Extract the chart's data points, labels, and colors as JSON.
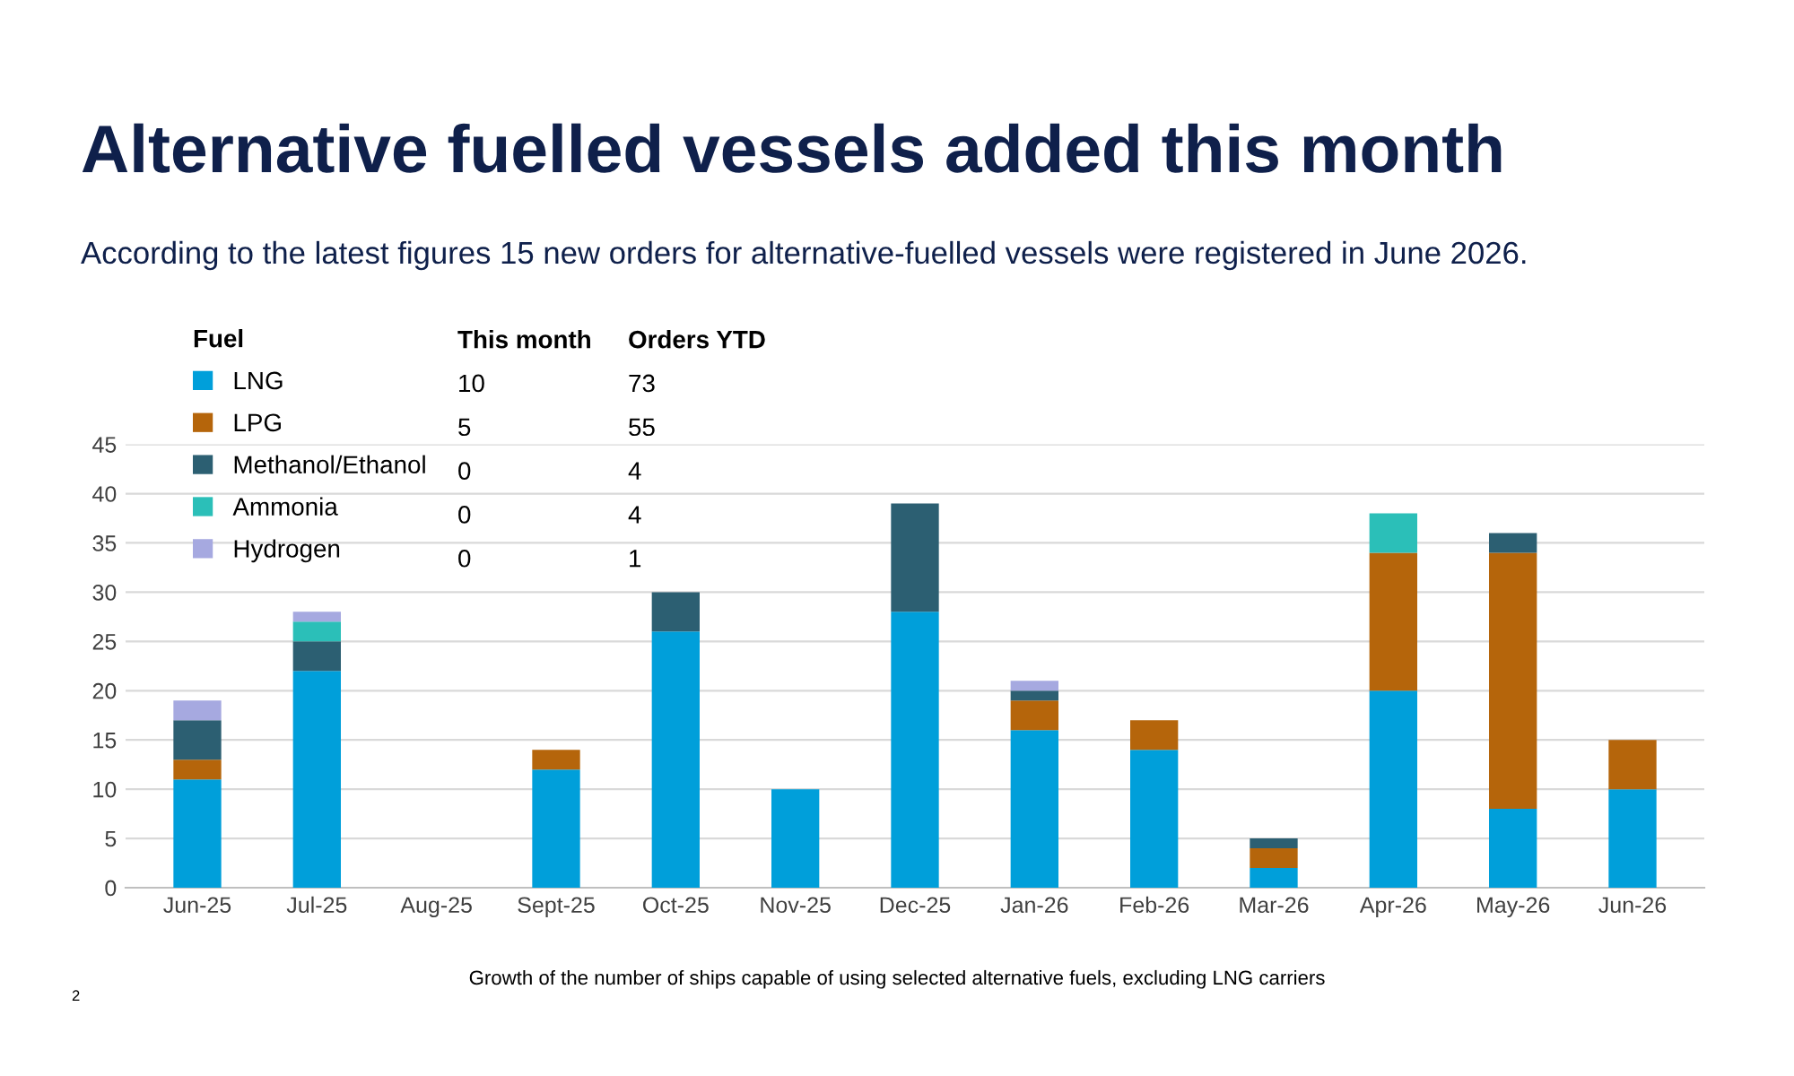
{
  "chart_data": {
    "type": "bar",
    "stacked": true,
    "title": "Alternative fuelled vessels added this month",
    "subtitle": "According to the latest figures 15 new orders for alternative-fuelled vessels were registered in June 2026.",
    "categories": [
      "Jun-25",
      "Jul-25",
      "Aug-25",
      "Sept-25",
      "Oct-25",
      "Nov-25",
      "Dec-25",
      "Jan-26",
      "Feb-26",
      "Mar-26",
      "Apr-26",
      "May-26",
      "Jun-26"
    ],
    "series": [
      {
        "name": "LNG",
        "color": "#009fda",
        "values": [
          11,
          22,
          0,
          12,
          26,
          10,
          28,
          16,
          14,
          2,
          20,
          8,
          10
        ]
      },
      {
        "name": "LPG",
        "color": "#b5650b",
        "values": [
          2,
          0,
          0,
          2,
          0,
          0,
          0,
          3,
          3,
          2,
          14,
          26,
          5
        ]
      },
      {
        "name": "Methanol/Ethanol",
        "color": "#2c5f72",
        "values": [
          4,
          3,
          0,
          0,
          4,
          0,
          11,
          1,
          0,
          1,
          0,
          2,
          0
        ]
      },
      {
        "name": "Ammonia",
        "color": "#2bbfb8",
        "values": [
          0,
          2,
          0,
          0,
          0,
          0,
          0,
          0,
          0,
          0,
          4,
          0,
          0
        ]
      },
      {
        "name": "Hydrogen",
        "color": "#a6a9e0",
        "values": [
          2,
          1,
          0,
          0,
          0,
          0,
          0,
          1,
          0,
          0,
          0,
          0,
          0
        ]
      }
    ],
    "ylim": [
      0,
      45
    ],
    "yticks": [
      0,
      5,
      10,
      15,
      20,
      25,
      30,
      35,
      40,
      45
    ],
    "grid": "y",
    "legend": "top left",
    "legend_title": "Fuel",
    "annotations": [
      "This month",
      "Orders YTD",
      "10",
      "73",
      "5",
      "55",
      "0",
      "4",
      "0",
      "4",
      "0",
      "1",
      "Growth of the number of ships capable of using selected alternative fuels, excluding LNG carriers",
      "2"
    ]
  }
}
